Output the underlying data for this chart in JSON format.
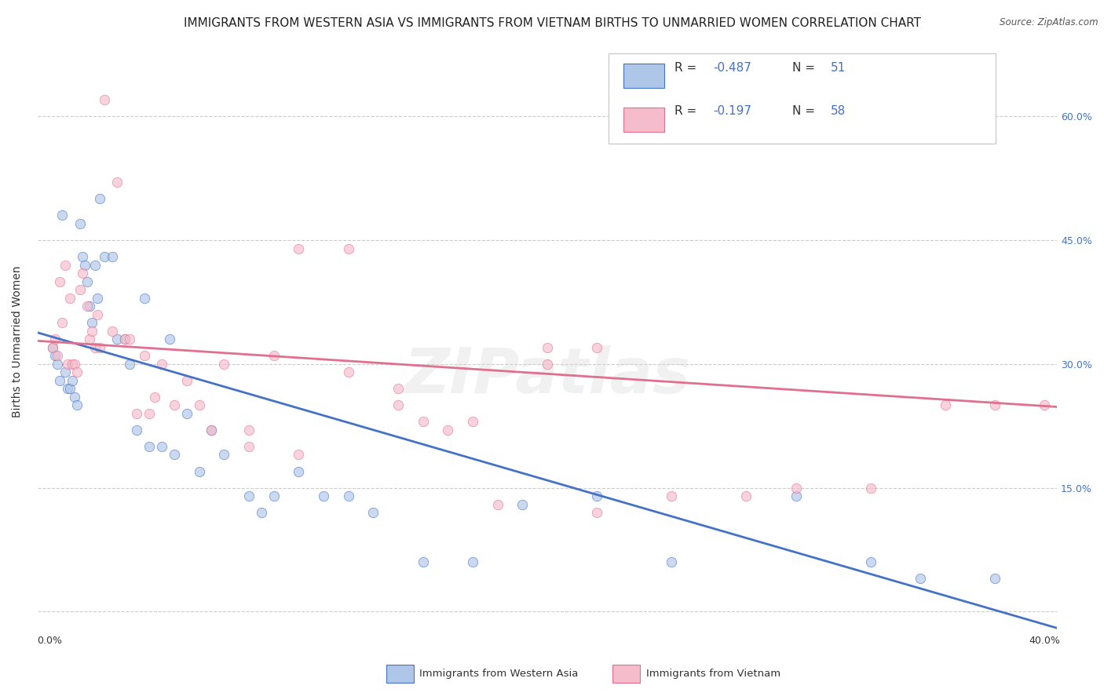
{
  "title": "IMMIGRANTS FROM WESTERN ASIA VS IMMIGRANTS FROM VIETNAM BIRTHS TO UNMARRIED WOMEN CORRELATION CHART",
  "source": "Source: ZipAtlas.com",
  "ylabel": "Births to Unmarried Women",
  "legend_label_blue": "Immigrants from Western Asia",
  "legend_label_pink": "Immigrants from Vietnam",
  "blue_color": "#aec6e8",
  "pink_color": "#f5bccb",
  "blue_line_color": "#4472c4",
  "pink_line_color": "#e07090",
  "watermark": "ZIPatlas",
  "blue_scatter_x": [
    0.001,
    0.002,
    0.003,
    0.004,
    0.005,
    0.006,
    0.007,
    0.008,
    0.009,
    0.01,
    0.011,
    0.012,
    0.013,
    0.014,
    0.015,
    0.016,
    0.017,
    0.018,
    0.019,
    0.02,
    0.022,
    0.025,
    0.027,
    0.03,
    0.032,
    0.035,
    0.038,
    0.04,
    0.045,
    0.048,
    0.05,
    0.055,
    0.06,
    0.065,
    0.07,
    0.08,
    0.085,
    0.09,
    0.1,
    0.11,
    0.12,
    0.13,
    0.15,
    0.17,
    0.19,
    0.22,
    0.25,
    0.3,
    0.33,
    0.35,
    0.38
  ],
  "blue_scatter_y": [
    0.32,
    0.31,
    0.3,
    0.28,
    0.48,
    0.29,
    0.27,
    0.27,
    0.28,
    0.26,
    0.25,
    0.47,
    0.43,
    0.42,
    0.4,
    0.37,
    0.35,
    0.42,
    0.38,
    0.5,
    0.43,
    0.43,
    0.33,
    0.33,
    0.3,
    0.22,
    0.38,
    0.2,
    0.2,
    0.33,
    0.19,
    0.24,
    0.17,
    0.22,
    0.19,
    0.14,
    0.12,
    0.14,
    0.17,
    0.14,
    0.14,
    0.12,
    0.06,
    0.06,
    0.13,
    0.14,
    0.06,
    0.14,
    0.06,
    0.04,
    0.04
  ],
  "pink_scatter_x": [
    0.001,
    0.002,
    0.003,
    0.004,
    0.005,
    0.006,
    0.007,
    0.008,
    0.009,
    0.01,
    0.011,
    0.012,
    0.013,
    0.015,
    0.016,
    0.017,
    0.018,
    0.019,
    0.02,
    0.022,
    0.025,
    0.027,
    0.03,
    0.032,
    0.035,
    0.038,
    0.04,
    0.042,
    0.045,
    0.05,
    0.055,
    0.06,
    0.065,
    0.07,
    0.08,
    0.09,
    0.1,
    0.12,
    0.14,
    0.16,
    0.18,
    0.2,
    0.22,
    0.25,
    0.28,
    0.3,
    0.33,
    0.36,
    0.38,
    0.4,
    0.15,
    0.17,
    0.2,
    0.22,
    0.1,
    0.08,
    0.12,
    0.14
  ],
  "pink_scatter_y": [
    0.32,
    0.33,
    0.31,
    0.4,
    0.35,
    0.42,
    0.3,
    0.38,
    0.3,
    0.3,
    0.29,
    0.39,
    0.41,
    0.37,
    0.33,
    0.34,
    0.32,
    0.36,
    0.32,
    0.62,
    0.34,
    0.52,
    0.33,
    0.33,
    0.24,
    0.31,
    0.24,
    0.26,
    0.3,
    0.25,
    0.28,
    0.25,
    0.22,
    0.3,
    0.2,
    0.31,
    0.44,
    0.44,
    0.25,
    0.22,
    0.13,
    0.3,
    0.12,
    0.14,
    0.14,
    0.15,
    0.15,
    0.25,
    0.25,
    0.25,
    0.23,
    0.23,
    0.32,
    0.32,
    0.19,
    0.22,
    0.29,
    0.27
  ],
  "xlim": [
    -0.005,
    0.405
  ],
  "ylim": [
    -0.025,
    0.68
  ],
  "blue_trend_x": [
    -0.005,
    0.405
  ],
  "blue_trend_y": [
    0.338,
    -0.02
  ],
  "pink_trend_x": [
    -0.005,
    0.405
  ],
  "pink_trend_y": [
    0.328,
    0.248
  ],
  "background_color": "#ffffff",
  "grid_color": "#cccccc",
  "title_fontsize": 11,
  "axis_label_fontsize": 10,
  "tick_fontsize": 9,
  "scatter_size": 80,
  "scatter_alpha": 0.65,
  "line_width": 2.0,
  "x_ticks": [
    0.0,
    0.05,
    0.1,
    0.15,
    0.2,
    0.25,
    0.3,
    0.35,
    0.4
  ],
  "y_ticks": [
    0.0,
    0.15,
    0.3,
    0.45,
    0.6
  ],
  "y_tick_labels": [
    "",
    "15.0%",
    "30.0%",
    "45.0%",
    "60.0%"
  ]
}
